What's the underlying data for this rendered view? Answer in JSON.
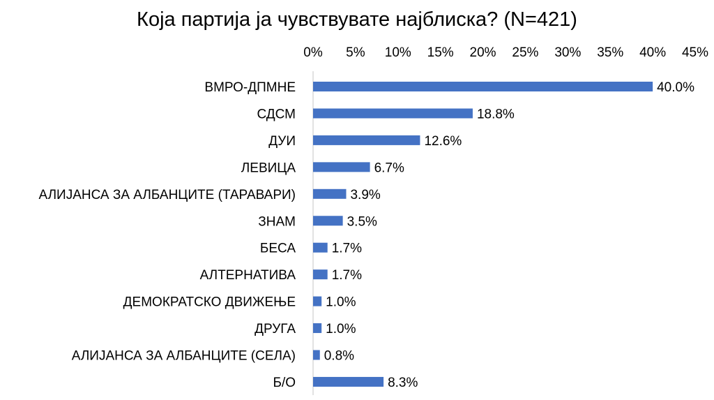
{
  "chart_data": {
    "type": "bar",
    "orientation": "horizontal",
    "title": "Која партија ја чувствувате најблиска? (N=421)",
    "categories": [
      "ВМРО-ДПМНЕ",
      "СДСМ",
      "ДУИ",
      "ЛЕВИЦА",
      "АЛИЈАНСА ЗА АЛБАНЦИТЕ (ТАРАВАРИ)",
      "ЗНАМ",
      "БЕСА",
      "АЛТЕРНАТИВА",
      "ДЕМОКРАТСКО ДВИЖЕЊЕ",
      "ДРУГА",
      "АЛИЈАНСА ЗА АЛБАНЦИТЕ (СЕЛА)",
      "Б/О"
    ],
    "values": [
      40.0,
      18.8,
      12.6,
      6.7,
      3.9,
      3.5,
      1.7,
      1.7,
      1.0,
      1.0,
      0.8,
      8.3
    ],
    "value_labels": [
      "40.0%",
      "18.8%",
      "12.6%",
      "6.7%",
      "3.9%",
      "3.5%",
      "1.7%",
      "1.7%",
      "1.0%",
      "1.0%",
      "0.8%",
      "8.3%"
    ],
    "xlim": [
      0,
      45
    ],
    "x_ticks": [
      "0%",
      "5%",
      "10%",
      "15%",
      "20%",
      "25%",
      "30%",
      "35%",
      "40%",
      "45%"
    ],
    "x_axis_position": "top",
    "grid": false,
    "bar_color": "#4472C4"
  }
}
